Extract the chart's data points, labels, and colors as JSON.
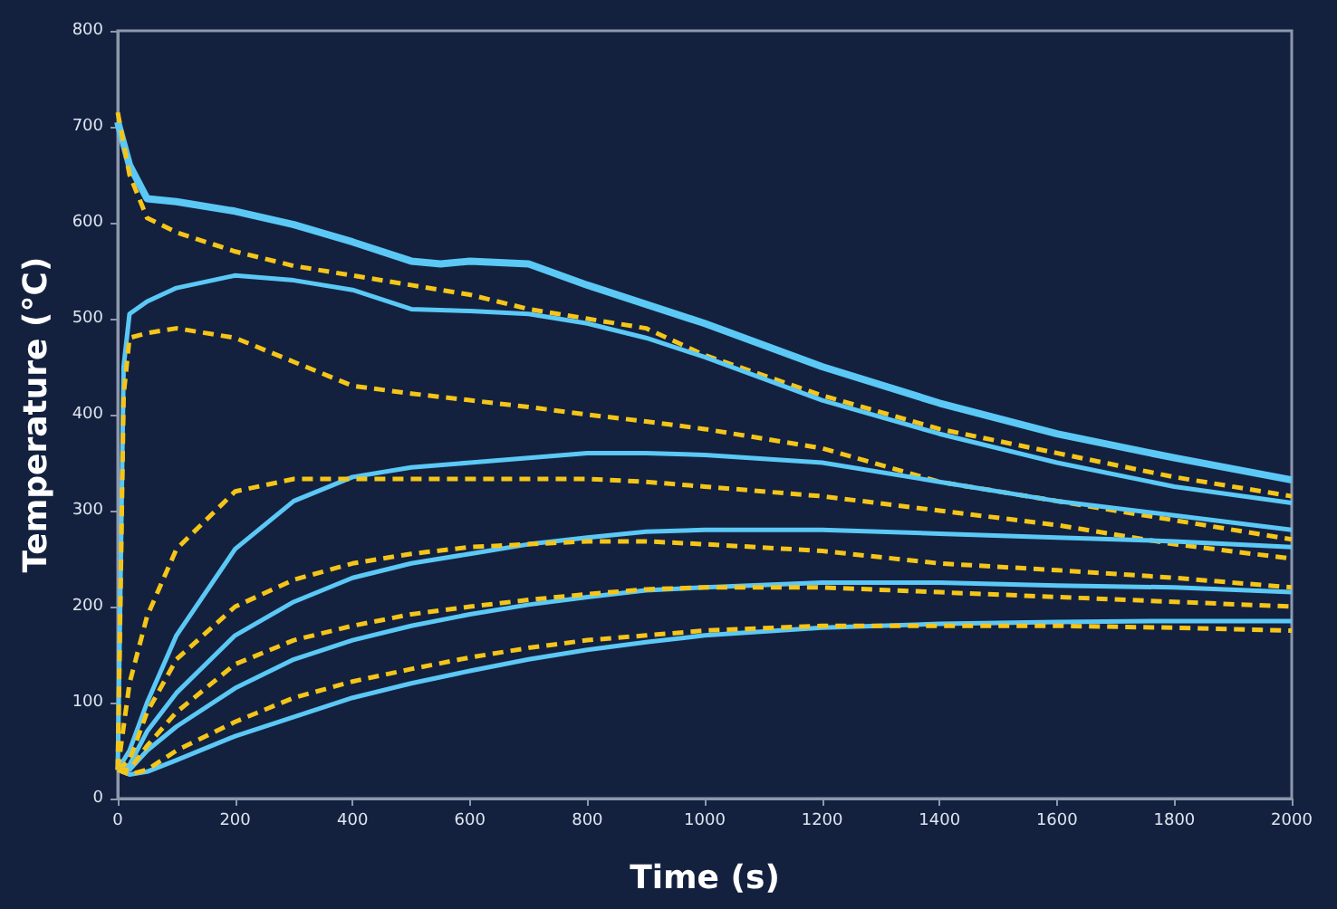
{
  "chart_data": {
    "type": "line",
    "xlabel": "Time (s)",
    "ylabel": "Temperature (°C)",
    "xlim": [
      0,
      2000
    ],
    "xticks": [
      0,
      200,
      400,
      600,
      800,
      1000,
      1200,
      1400,
      1600,
      1800,
      2000
    ],
    "ylim": [
      0,
      800
    ],
    "yticks": [
      0,
      100,
      200,
      300,
      400,
      500,
      600,
      700,
      800
    ],
    "grid": false,
    "marker": "none",
    "series": [
      {
        "color": "#5bc8f5",
        "line_style": "solid",
        "x": [
          0,
          20,
          50,
          100,
          200,
          300,
          400,
          500,
          550,
          600,
          700,
          800,
          900,
          1000,
          1200,
          1400,
          1600,
          1800,
          2000
        ],
        "values": [
          705,
          660,
          625,
          622,
          612,
          598,
          580,
          560,
          557,
          560,
          557,
          535,
          515,
          495,
          450,
          412,
          380,
          355,
          332
        ]
      },
      {
        "color": "#f5c518",
        "line_style": "dashed",
        "x": [
          0,
          20,
          50,
          100,
          200,
          300,
          400,
          500,
          600,
          700,
          800,
          900,
          1000,
          1200,
          1400,
          1600,
          1800,
          2000
        ],
        "values": [
          715,
          650,
          605,
          590,
          570,
          555,
          545,
          535,
          525,
          510,
          500,
          490,
          462,
          420,
          385,
          360,
          335,
          315
        ]
      },
      {
        "color": "#5bc8f5",
        "line_style": "solid",
        "x": [
          0,
          10,
          20,
          50,
          100,
          200,
          300,
          400,
          500,
          600,
          700,
          800,
          900,
          1000,
          1200,
          1400,
          1600,
          1800,
          2000
        ],
        "values": [
          30,
          450,
          505,
          518,
          532,
          545,
          540,
          530,
          510,
          508,
          505,
          495,
          480,
          460,
          415,
          380,
          350,
          325,
          308
        ]
      },
      {
        "color": "#f5c518",
        "line_style": "dashed",
        "x": [
          0,
          10,
          20,
          50,
          100,
          200,
          300,
          400,
          500,
          600,
          700,
          800,
          900,
          1000,
          1200,
          1400,
          1600,
          1800,
          2000
        ],
        "values": [
          30,
          420,
          480,
          485,
          490,
          480,
          455,
          430,
          422,
          415,
          408,
          400,
          393,
          385,
          365,
          330,
          310,
          290,
          270
        ]
      },
      {
        "color": "#5bc8f5",
        "line_style": "solid",
        "x": [
          0,
          20,
          50,
          100,
          200,
          300,
          400,
          500,
          600,
          700,
          800,
          900,
          1000,
          1200,
          1400,
          1600,
          1800,
          2000
        ],
        "values": [
          30,
          50,
          100,
          170,
          260,
          310,
          335,
          345,
          350,
          355,
          360,
          360,
          358,
          350,
          330,
          310,
          295,
          280
        ]
      },
      {
        "color": "#f5c518",
        "line_style": "dashed",
        "x": [
          0,
          20,
          50,
          100,
          200,
          300,
          400,
          500,
          600,
          700,
          800,
          900,
          1000,
          1200,
          1400,
          1600,
          1800,
          2000
        ],
        "values": [
          30,
          120,
          190,
          260,
          320,
          333,
          333,
          333,
          333,
          333,
          333,
          330,
          325,
          315,
          300,
          285,
          265,
          250
        ]
      },
      {
        "color": "#5bc8f5",
        "line_style": "solid",
        "x": [
          0,
          20,
          50,
          100,
          200,
          300,
          400,
          500,
          600,
          700,
          800,
          900,
          1000,
          1200,
          1400,
          1600,
          1800,
          2000
        ],
        "values": [
          30,
          35,
          70,
          110,
          170,
          205,
          230,
          245,
          255,
          265,
          272,
          278,
          280,
          280,
          276,
          272,
          268,
          262
        ]
      },
      {
        "color": "#f5c518",
        "line_style": "dashed",
        "x": [
          0,
          20,
          50,
          100,
          200,
          300,
          400,
          500,
          600,
          700,
          800,
          900,
          1000,
          1200,
          1400,
          1600,
          1800,
          2000
        ],
        "values": [
          30,
          40,
          90,
          145,
          200,
          228,
          245,
          255,
          262,
          265,
          268,
          268,
          265,
          258,
          245,
          238,
          230,
          220
        ]
      },
      {
        "color": "#5bc8f5",
        "line_style": "solid",
        "x": [
          0,
          20,
          50,
          100,
          200,
          300,
          400,
          500,
          600,
          700,
          800,
          900,
          1000,
          1200,
          1400,
          1600,
          1800,
          2000
        ],
        "values": [
          30,
          30,
          50,
          75,
          115,
          145,
          165,
          180,
          192,
          202,
          210,
          217,
          220,
          225,
          225,
          222,
          220,
          215
        ]
      },
      {
        "color": "#f5c518",
        "line_style": "dashed",
        "x": [
          0,
          20,
          50,
          100,
          200,
          300,
          400,
          500,
          600,
          700,
          800,
          900,
          1000,
          1200,
          1400,
          1600,
          1800,
          2000
        ],
        "values": [
          30,
          30,
          55,
          90,
          140,
          165,
          180,
          192,
          200,
          207,
          213,
          218,
          220,
          220,
          215,
          210,
          205,
          200
        ]
      },
      {
        "color": "#5bc8f5",
        "line_style": "solid",
        "x": [
          0,
          20,
          50,
          100,
          200,
          300,
          400,
          500,
          600,
          700,
          800,
          900,
          1000,
          1200,
          1400,
          1600,
          1800,
          2000
        ],
        "values": [
          30,
          25,
          28,
          40,
          65,
          85,
          105,
          120,
          133,
          145,
          155,
          163,
          170,
          178,
          182,
          184,
          185,
          185
        ]
      },
      {
        "color": "#f5c518",
        "line_style": "dashed",
        "x": [
          0,
          20,
          50,
          100,
          200,
          300,
          400,
          500,
          600,
          700,
          800,
          900,
          1000,
          1200,
          1400,
          1600,
          1800,
          2000
        ],
        "values": [
          30,
          25,
          30,
          50,
          80,
          105,
          122,
          135,
          147,
          157,
          165,
          170,
          175,
          180,
          180,
          180,
          178,
          175
        ]
      }
    ]
  }
}
